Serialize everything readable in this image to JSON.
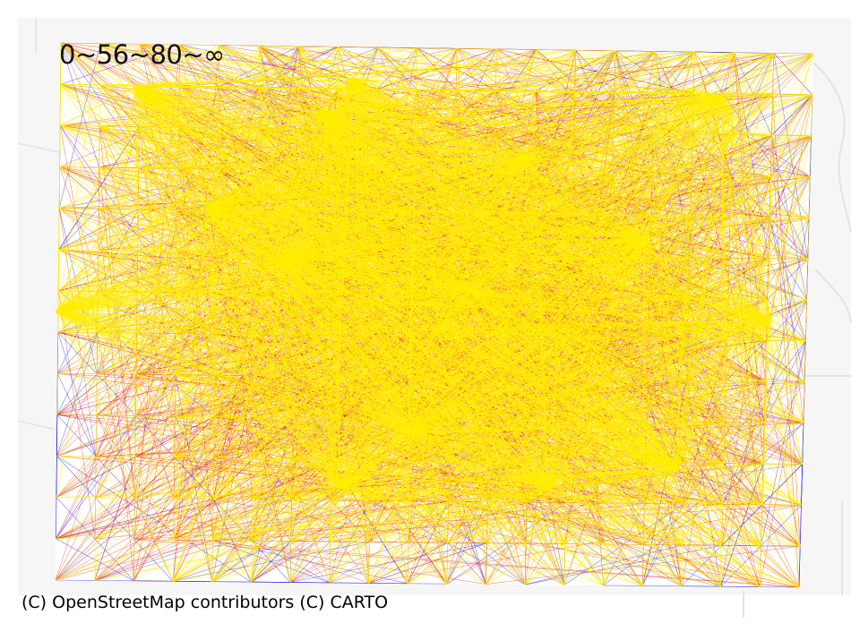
{
  "legend": {
    "text": "0~56~80~∞"
  },
  "attribution": "(C) OpenStreetMap contributors (C) CARTO",
  "color_bins": [
    {
      "label": "0~56",
      "color": "#1a10e6"
    },
    {
      "label": "56~80",
      "color": "#e01010"
    },
    {
      "label": "80~∞",
      "color": "#ffee00"
    }
  ],
  "basemap": {
    "background": "#f6f6f6",
    "roads": "#e2e2e2"
  }
}
